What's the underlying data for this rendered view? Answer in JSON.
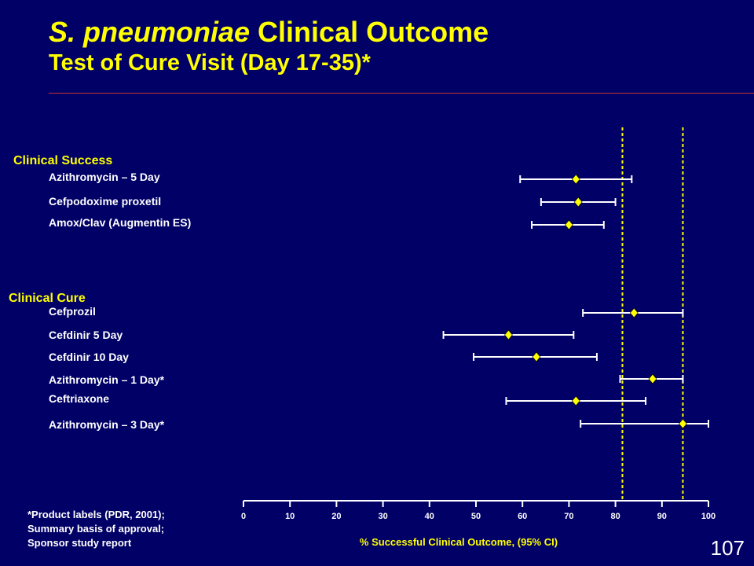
{
  "title": {
    "italic_part": "S. pneumoniae",
    "rest_part": " Clinical Outcome",
    "subtitle": "Test of Cure Visit (Day 17-35)*"
  },
  "footnote": {
    "lines": [
      "*Product labels (PDR, 2001);",
      "Summary basis of approval;",
      "Sponsor study report"
    ]
  },
  "page_number": "107",
  "colors": {
    "background": "#000066",
    "title": "#ffff00",
    "group_label": "#ffff00",
    "marker": "#ffff00",
    "reference_line": "#ffff00",
    "interval": "#ffffff",
    "text": "#ffffff",
    "title_rule": "#cc3333"
  },
  "chart_data": {
    "type": "forest",
    "xlabel": "% Successful Clinical Outcome, (95% CI)",
    "xlim": [
      0,
      100
    ],
    "xticks": [
      0,
      10,
      20,
      30,
      40,
      50,
      60,
      70,
      80,
      90,
      100
    ],
    "marker": "diamond",
    "reference_lines": [
      81.5,
      94.5
    ],
    "groups": [
      {
        "name": "Clinical Success",
        "items": [
          {
            "label": "Azithromycin – 5 Day",
            "estimate": 71.5,
            "lower": 59.5,
            "upper": 83.5
          },
          {
            "label": "Cefpodoxime proxetil",
            "estimate": 72,
            "lower": 64,
            "upper": 80
          },
          {
            "label": "Amox/Clav (Augmentin ES)",
            "estimate": 70,
            "lower": 62,
            "upper": 77.5
          }
        ]
      },
      {
        "name": "Clinical Cure",
        "items": [
          {
            "label": "Cefprozil",
            "estimate": 84,
            "lower": 73,
            "upper": 94.5
          },
          {
            "label": "Cefdinir 5 Day",
            "estimate": 57,
            "lower": 43,
            "upper": 71
          },
          {
            "label": "Cefdinir 10 Day",
            "estimate": 63,
            "lower": 49.5,
            "upper": 76
          },
          {
            "label": "Azithromycin – 1 Day*",
            "estimate": 88,
            "lower": 81,
            "upper": 94.5
          },
          {
            "label": "Ceftriaxone",
            "estimate": 71.5,
            "lower": 56.5,
            "upper": 86.5
          },
          {
            "label": "Azithromycin – 3 Day*",
            "estimate": 94.5,
            "lower": 72.5,
            "upper": 100
          }
        ]
      }
    ]
  }
}
